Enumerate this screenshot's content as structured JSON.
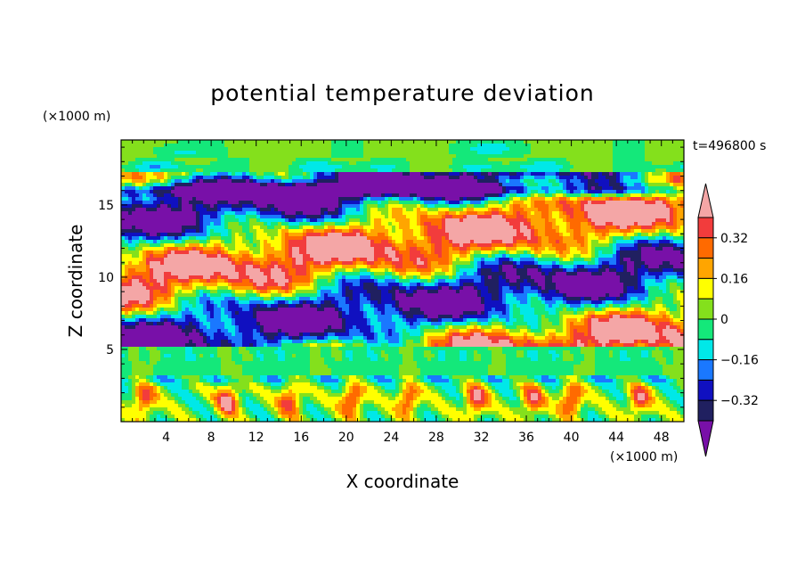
{
  "chart_data": {
    "type": "heatmap",
    "title": "potential temperature deviation",
    "xlabel": "X coordinate",
    "ylabel": "Z coordinate",
    "x_unit": "(×1000 m)",
    "y_unit": "(×1000 m)",
    "time_label": "t=496800 s",
    "xlim": [
      0,
      50
    ],
    "ylim": [
      0,
      19.5
    ],
    "x_ticks": [
      4,
      8,
      12,
      16,
      20,
      24,
      28,
      32,
      36,
      40,
      44,
      48
    ],
    "y_ticks": [
      5,
      10,
      15
    ],
    "colorbar": {
      "labels": [
        {
          "value": 0.32,
          "text": "0.32"
        },
        {
          "value": 0.16,
          "text": "0.16"
        },
        {
          "value": 0,
          "text": "0"
        },
        {
          "value": -0.16,
          "text": "−0.16"
        },
        {
          "value": -0.32,
          "text": "−0.32"
        }
      ],
      "levels": [
        {
          "min": 0.4,
          "max": null,
          "color": "#f4a6a6"
        },
        {
          "min": 0.32,
          "max": 0.4,
          "color": "#f23c3c"
        },
        {
          "min": 0.24,
          "max": 0.32,
          "color": "#ff6a00"
        },
        {
          "min": 0.16,
          "max": 0.24,
          "color": "#ffa500"
        },
        {
          "min": 0.08,
          "max": 0.16,
          "color": "#ffff00"
        },
        {
          "min": 0.0,
          "max": 0.08,
          "color": "#84e01c"
        },
        {
          "min": -0.08,
          "max": 0.0,
          "color": "#14e87a"
        },
        {
          "min": -0.16,
          "max": -0.08,
          "color": "#00e8e8"
        },
        {
          "min": -0.24,
          "max": -0.16,
          "color": "#1a78ff"
        },
        {
          "min": -0.32,
          "max": -0.24,
          "color": "#1010c0"
        },
        {
          "min": -0.4,
          "max": -0.32,
          "color": "#202060"
        },
        {
          "min": null,
          "max": -0.4,
          "color": "#7810a8"
        }
      ]
    }
  }
}
